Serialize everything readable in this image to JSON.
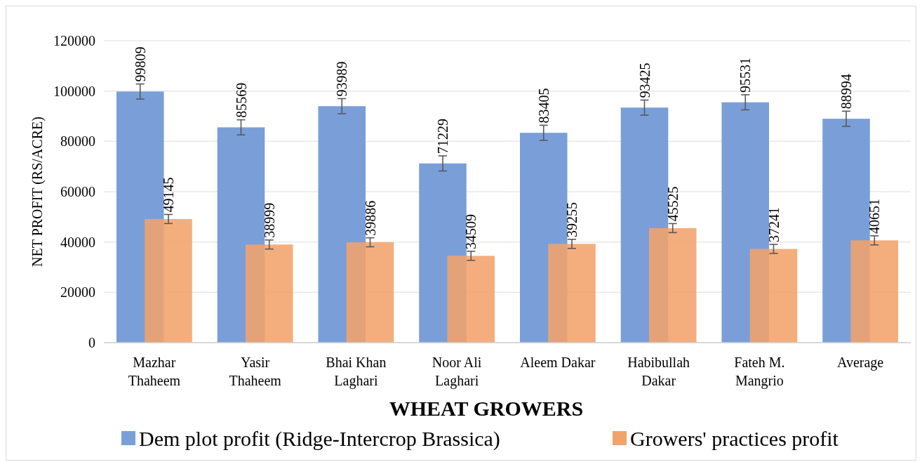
{
  "chart_data": {
    "type": "bar",
    "xlabel": "WHEAT GROWERS",
    "ylabel": "NET PROFIT (RS/ACRE)",
    "categories": [
      "Mazhar Thaheem",
      "Yasir Thaheem",
      "Bhai Khan Laghari",
      "Noor Ali Laghari",
      "Aleem Dakar",
      "Habibullah Dakar",
      "Fateh M. Mangrio",
      "Average"
    ],
    "series": [
      {
        "name": "Dem plot profit (Ridge-Intercrop Brassica)",
        "color": "#7a9fd8",
        "values": [
          99809,
          85569,
          93989,
          71229,
          83405,
          93425,
          95531,
          88994
        ],
        "errors": [
          3000,
          3000,
          3000,
          3000,
          3000,
          3000,
          3000,
          3000
        ]
      },
      {
        "name": "Growers' practices profit",
        "color": "#f2a36b",
        "values": [
          49145,
          38999,
          39886,
          34509,
          39255,
          45525,
          37241,
          40651
        ],
        "errors": [
          1800,
          1800,
          1800,
          1800,
          1800,
          1800,
          1800,
          1800
        ]
      }
    ],
    "ylim": [
      0,
      120000
    ],
    "yticks": [
      0,
      20000,
      40000,
      60000,
      80000,
      100000,
      120000
    ],
    "grid": "y",
    "legend": "bottom",
    "data_labels": true
  }
}
